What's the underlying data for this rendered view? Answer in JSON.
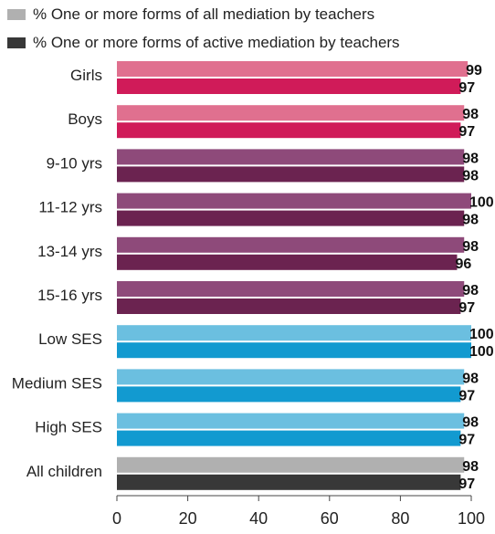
{
  "chart_data": {
    "type": "bar",
    "orientation": "horizontal",
    "series": [
      {
        "name": "% One or more forms of all mediation by teachers",
        "legend_color": "#b0b0b0"
      },
      {
        "name": "% One or more forms of active mediation by teachers",
        "legend_color": "#383838"
      }
    ],
    "groups": [
      {
        "label": "Girls",
        "values": [
          99,
          97
        ],
        "colors": [
          "#e0708f",
          "#d01b59"
        ]
      },
      {
        "label": "Boys",
        "values": [
          98,
          97
        ],
        "colors": [
          "#e0708f",
          "#d01b59"
        ]
      },
      {
        "label": "9-10 yrs",
        "values": [
          98,
          98
        ],
        "colors": [
          "#8e4a7a",
          "#6b2350"
        ]
      },
      {
        "label": "11-12 yrs",
        "values": [
          100,
          98
        ],
        "colors": [
          "#8e4a7a",
          "#6b2350"
        ]
      },
      {
        "label": "13-14 yrs",
        "values": [
          98,
          96
        ],
        "colors": [
          "#8e4a7a",
          "#6b2350"
        ]
      },
      {
        "label": "15-16 yrs",
        "values": [
          98,
          97
        ],
        "colors": [
          "#8e4a7a",
          "#6b2350"
        ]
      },
      {
        "label": "Low  SES",
        "values": [
          100,
          100
        ],
        "colors": [
          "#6bbfe0",
          "#129ad0"
        ]
      },
      {
        "label": "Medium SES",
        "values": [
          98,
          97
        ],
        "colors": [
          "#6bbfe0",
          "#129ad0"
        ]
      },
      {
        "label": "High SES",
        "values": [
          98,
          97
        ],
        "colors": [
          "#6bbfe0",
          "#129ad0"
        ]
      },
      {
        "label": "All children",
        "values": [
          98,
          97
        ],
        "colors": [
          "#b0b0b0",
          "#383838"
        ]
      }
    ],
    "xlim": [
      0,
      100
    ],
    "xticks": [
      "0",
      "20",
      "40",
      "60",
      "80",
      "100"
    ],
    "grid": false,
    "legend_position": "top-left"
  }
}
